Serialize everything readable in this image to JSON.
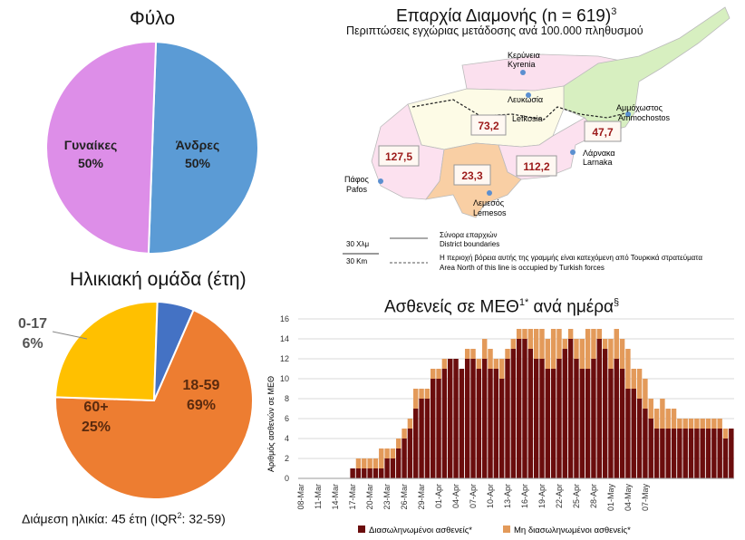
{
  "sex_panel": {
    "title": "Φύλο",
    "chart_data": {
      "type": "pie",
      "title": "Φύλο",
      "slices": [
        {
          "label": "Άνδρες",
          "value": 50,
          "display": "50%",
          "color": "#5b9bd5"
        },
        {
          "label": "Γυναίκες",
          "value": 50,
          "display": "50%",
          "color": "#dd8ee8"
        }
      ]
    }
  },
  "age_panel": {
    "title": "Ηλικιακή ομάδα (έτη)",
    "median_label": "Διάμεση ηλικία: 45 έτη (IQR",
    "median_sup": "2",
    "median_tail": ": 32-59)",
    "chart_data": {
      "type": "pie",
      "title": "Ηλικιακή ομάδα (έτη)",
      "slices": [
        {
          "label": "18-59",
          "value": 69,
          "display": "69%",
          "color": "#ed7d31"
        },
        {
          "label": "60+",
          "value": 25,
          "display": "25%",
          "color": "#ffc000"
        },
        {
          "label": "0-17",
          "value": 6,
          "display": "6%",
          "color": "#4472c4"
        }
      ]
    }
  },
  "map_panel": {
    "title": "Επαρχία Διαμονής (n = 619)",
    "title_sup": "3",
    "subtitle": "Περιπτώσεις εγχώριας μετάδοσης ανά 100.000 πληθυσμού",
    "districts": [
      {
        "name_gr": "Κερύνεια",
        "name_en": "Kyrenia",
        "value": ""
      },
      {
        "name_gr": "Λευκωσία",
        "name_en": "Lefkosia",
        "value": "73,2"
      },
      {
        "name_gr": "Αμμόχωστος",
        "name_en": "Ammochostos",
        "value": "47,7"
      },
      {
        "name_gr": "Λάρνακα",
        "name_en": "Larnaka",
        "value": "112,2"
      },
      {
        "name_gr": "Λεμεσός",
        "name_en": "Lemesos",
        "value": "23,3"
      },
      {
        "name_gr": "Πάφος",
        "name_en": "Pafos",
        "value": "127,5"
      }
    ],
    "legend": {
      "boundary_gr": "Σύνορα επαρχιών",
      "boundary_en": "District boundaries",
      "occupied_gr": "Η περιοχή βόρεια αυτής της γραμμής είναι κατεχόμενη από Τουρκικά στρατεύματα",
      "occupied_en": "Area North of this line is occupied by Turkish forces",
      "scale_gr": "30 Χλμ",
      "scale_en": "30 Km"
    }
  },
  "icu_panel": {
    "title": "Ασθενείς σε ΜΕΘ",
    "title_sup1": "1*",
    "title_mid": " ανά ημέρα",
    "title_sup2": "§",
    "chart_data": {
      "type": "bar",
      "stacked": true,
      "ylabel": "Αριθμός ασθενών σε ΜΕΘ",
      "ylim": [
        0,
        16
      ],
      "yticks": [
        0,
        2,
        4,
        6,
        8,
        10,
        12,
        14,
        16
      ],
      "grid": true,
      "legend_position": "bottom",
      "x_tick_labels": [
        "08-Mar",
        "11-Mar",
        "14-Mar",
        "17-Mar",
        "20-Mar",
        "23-Mar",
        "26-Mar",
        "29-Mar",
        "01-Apr",
        "04-Apr",
        "07-Apr",
        "10-Apr",
        "13-Apr",
        "16-Apr",
        "19-Apr",
        "22-Apr",
        "25-Apr",
        "28-Apr",
        "01-May",
        "04-May",
        "07-May"
      ],
      "start_date": "08-Mar",
      "series": [
        {
          "name": "Διασωληνωμένοι ασθενείς*",
          "color": "#6b0d0d",
          "values": [
            0,
            0,
            0,
            0,
            0,
            0,
            0,
            0,
            0,
            1,
            1,
            1,
            1,
            1,
            1,
            2,
            2,
            3,
            4,
            5,
            7,
            8,
            8,
            10,
            10,
            11,
            12,
            12,
            11,
            12,
            12,
            11,
            12,
            11,
            11,
            10,
            12,
            13,
            14,
            14,
            13,
            12,
            12,
            11,
            11,
            12,
            13,
            14,
            12,
            11,
            11,
            12,
            14,
            13,
            11,
            12,
            11,
            9,
            9,
            8,
            7,
            6,
            5,
            5,
            5,
            5,
            5,
            5,
            5,
            5,
            5,
            5,
            5,
            5,
            4,
            5
          ]
        },
        {
          "name": "Μη διασωληνωμένοι ασθενείς*",
          "color": "#e39a5a",
          "values": [
            0,
            0,
            0,
            0,
            0,
            0,
            0,
            0,
            0,
            0,
            1,
            1,
            1,
            1,
            2,
            1,
            1,
            1,
            1,
            1,
            2,
            1,
            1,
            1,
            1,
            1,
            0,
            0,
            0,
            1,
            1,
            1,
            2,
            2,
            1,
            2,
            1,
            1,
            1,
            1,
            2,
            3,
            3,
            3,
            4,
            3,
            1,
            1,
            2,
            3,
            4,
            3,
            1,
            1,
            3,
            3,
            3,
            4,
            2,
            3,
            3,
            2,
            2,
            3,
            2,
            2,
            1,
            1,
            1,
            1,
            1,
            1,
            1,
            1,
            1,
            0
          ]
        }
      ]
    }
  }
}
